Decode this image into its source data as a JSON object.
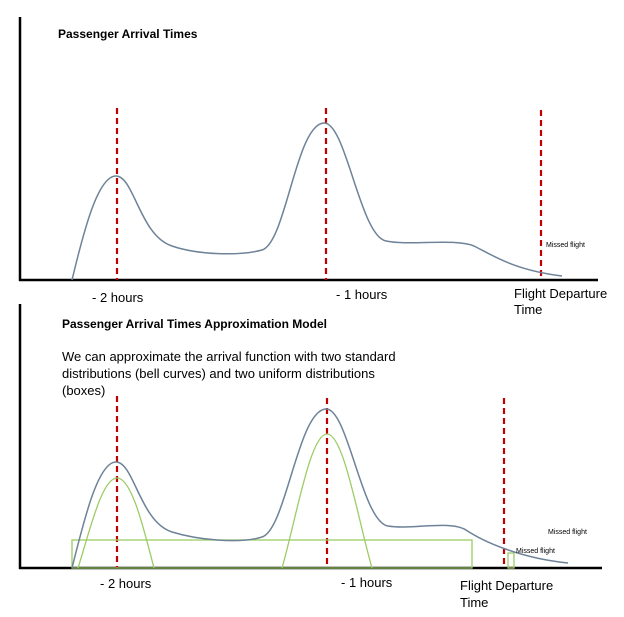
{
  "top_panel": {
    "title": "Passenger Arrival Times",
    "labels": {
      "two_hours": "- 2 hours",
      "one_hour": "- 1 hours",
      "departure_line1": "Flight Departure",
      "departure_line2": "Time",
      "missed": "Missed flight"
    }
  },
  "bottom_panel": {
    "title": "Passenger Arrival Times Approximation Model",
    "description": [
      "We can approximate the arrival function with two standard",
      "distributions (bell curves) and two uniform distributions",
      "(boxes)"
    ],
    "labels": {
      "two_hours": "- 2 hours",
      "one_hour": "- 1 hours",
      "departure_line1": "Flight Departure",
      "departure_line2": "Time",
      "missed_upper": "Missed flight",
      "missed_lower": "Missed flight"
    }
  },
  "colors": {
    "arrival_curve": "#6e8398",
    "time_markers": "#c00000",
    "approximation": "#9ccc65",
    "axes": "#000000"
  }
}
